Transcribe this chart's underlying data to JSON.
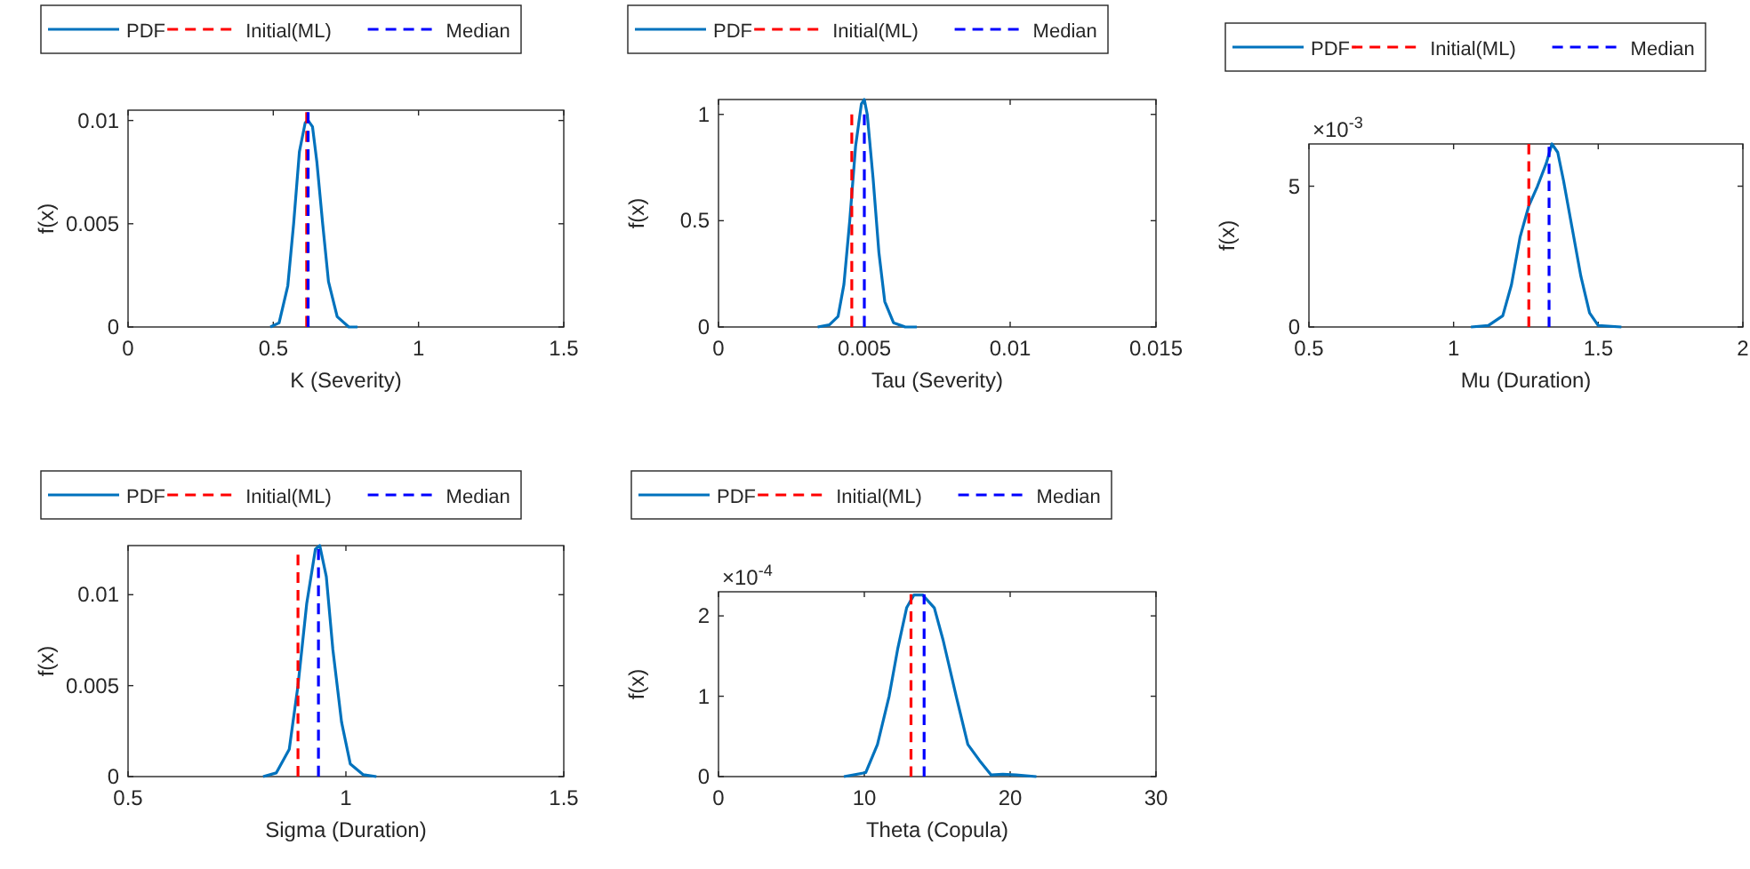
{
  "chart_data": [
    {
      "type": "line",
      "xlabel": "K (Severity)",
      "ylabel": "f(x)",
      "xlim": [
        0,
        1.5
      ],
      "xticks": [
        0,
        0.5,
        1,
        1.5
      ],
      "ylim": [
        0,
        0.0105
      ],
      "yticks": [
        0,
        0.005,
        0.01
      ],
      "legend": "top",
      "series": [
        {
          "name": "PDF",
          "color": "#0072bd",
          "line_style": "solid",
          "x": [
            0.49,
            0.52,
            0.55,
            0.57,
            0.59,
            0.61,
            0.62,
            0.635,
            0.65,
            0.67,
            0.69,
            0.72,
            0.76,
            0.79
          ],
          "values": [
            0,
            0.0002,
            0.002,
            0.005,
            0.0085,
            0.0099,
            0.01,
            0.0097,
            0.008,
            0.005,
            0.0022,
            0.0005,
            0,
            0
          ]
        },
        {
          "name": "Initial(ML)",
          "color": "#ff0000",
          "line_style": "dashed",
          "x": [
            0.615,
            0.615
          ],
          "values": [
            0,
            0.0104
          ]
        },
        {
          "name": "Median",
          "color": "#0000ff",
          "line_style": "dashed",
          "x": [
            0.62,
            0.62
          ],
          "values": [
            0,
            0.0104
          ]
        }
      ]
    },
    {
      "type": "line",
      "xlabel": "Tau (Severity)",
      "ylabel": "f(x)",
      "xlim": [
        0,
        0.015
      ],
      "xticks": [
        0,
        0.005,
        0.01,
        0.015
      ],
      "ylim": [
        0,
        1.07
      ],
      "yticks": [
        0,
        0.5,
        1
      ],
      "legend": "top",
      "series": [
        {
          "name": "PDF",
          "color": "#0072bd",
          "line_style": "solid",
          "x": [
            0.0034,
            0.0038,
            0.0041,
            0.0043,
            0.0045,
            0.0047,
            0.0049,
            0.005,
            0.0051,
            0.0053,
            0.0055,
            0.0057,
            0.006,
            0.0064,
            0.0068
          ],
          "values": [
            0,
            0.01,
            0.05,
            0.2,
            0.5,
            0.85,
            1.05,
            1.07,
            1.0,
            0.7,
            0.35,
            0.12,
            0.02,
            0,
            0
          ]
        },
        {
          "name": "Initial(ML)",
          "color": "#ff0000",
          "line_style": "dashed",
          "x": [
            0.00457,
            0.00457
          ],
          "values": [
            0,
            1.0
          ]
        },
        {
          "name": "Median",
          "color": "#0000ff",
          "line_style": "dashed",
          "x": [
            0.005,
            0.005
          ],
          "values": [
            0,
            1.0
          ]
        }
      ]
    },
    {
      "type": "line",
      "xlabel": "Mu (Duration)",
      "ylabel": "f(x)",
      "annotations": [
        "×10$^{-3}$"
      ],
      "xlim": [
        0.5,
        2
      ],
      "xticks": [
        0.5,
        1,
        1.5,
        2
      ],
      "ylim": [
        0,
        6.5
      ],
      "yticks": [
        0,
        5
      ],
      "legend": "top",
      "series": [
        {
          "name": "PDF",
          "color": "#0072bd",
          "line_style": "solid",
          "x": [
            1.06,
            1.12,
            1.17,
            1.2,
            1.23,
            1.26,
            1.29,
            1.32,
            1.34,
            1.36,
            1.38,
            1.41,
            1.44,
            1.47,
            1.5,
            1.58
          ],
          "values": [
            0,
            0.05,
            0.4,
            1.5,
            3.2,
            4.3,
            5.0,
            5.8,
            6.5,
            6.2,
            5.2,
            3.5,
            1.8,
            0.5,
            0.05,
            0
          ]
        },
        {
          "name": "Initial(ML)",
          "color": "#ff0000",
          "line_style": "dashed",
          "x": [
            1.26,
            1.26
          ],
          "values": [
            0,
            6.5
          ]
        },
        {
          "name": "Median",
          "color": "#0000ff",
          "line_style": "dashed",
          "x": [
            1.33,
            1.33
          ],
          "values": [
            0,
            6.4
          ]
        }
      ]
    },
    {
      "type": "line",
      "xlabel": "Sigma (Duration)",
      "ylabel": "f(x)",
      "xlim": [
        0.5,
        1.5
      ],
      "xticks": [
        0.5,
        1,
        1.5
      ],
      "ylim": [
        0,
        0.0127
      ],
      "yticks": [
        0,
        0.005,
        0.01
      ],
      "legend": "top",
      "series": [
        {
          "name": "PDF",
          "color": "#0072bd",
          "line_style": "solid",
          "x": [
            0.81,
            0.84,
            0.87,
            0.89,
            0.91,
            0.93,
            0.94,
            0.955,
            0.97,
            0.99,
            1.01,
            1.04,
            1.07
          ],
          "values": [
            0,
            0.0002,
            0.0015,
            0.005,
            0.0095,
            0.0125,
            0.0127,
            0.011,
            0.007,
            0.003,
            0.0007,
            0.0001,
            0
          ]
        },
        {
          "name": "Initial(ML)",
          "color": "#ff0000",
          "line_style": "dashed",
          "x": [
            0.89,
            0.89
          ],
          "values": [
            0,
            0.0122
          ]
        },
        {
          "name": "Median",
          "color": "#0000ff",
          "line_style": "dashed",
          "x": [
            0.937,
            0.937
          ],
          "values": [
            0,
            0.0125
          ]
        }
      ]
    },
    {
      "type": "line",
      "xlabel": "Theta (Copula)",
      "ylabel": "f(x)",
      "annotations": [
        "×10$^{-4}$"
      ],
      "xlim": [
        0,
        30
      ],
      "xticks": [
        0,
        10,
        20,
        30
      ],
      "ylim": [
        0,
        2.3
      ],
      "yticks": [
        0,
        1,
        2
      ],
      "legend": "top",
      "series": [
        {
          "name": "PDF",
          "color": "#0072bd",
          "line_style": "solid",
          "x": [
            8.6,
            10.1,
            10.9,
            11.7,
            12.3,
            12.9,
            13.4,
            14,
            14.8,
            15.4,
            16.3,
            17.1,
            17.9,
            18.7,
            19.5,
            20.4,
            21.8
          ],
          "values": [
            0,
            0.05,
            0.4,
            1.0,
            1.6,
            2.1,
            2.26,
            2.26,
            2.1,
            1.7,
            1.0,
            0.4,
            0.2,
            0.02,
            0.03,
            0.02,
            0
          ]
        },
        {
          "name": "Initial(ML)",
          "color": "#ff0000",
          "line_style": "dashed",
          "x": [
            13.2,
            13.2
          ],
          "values": [
            0,
            2.27
          ]
        },
        {
          "name": "Median",
          "color": "#0000ff",
          "line_style": "dashed",
          "x": [
            14.1,
            14.1
          ],
          "values": [
            0,
            2.27
          ]
        }
      ]
    }
  ]
}
